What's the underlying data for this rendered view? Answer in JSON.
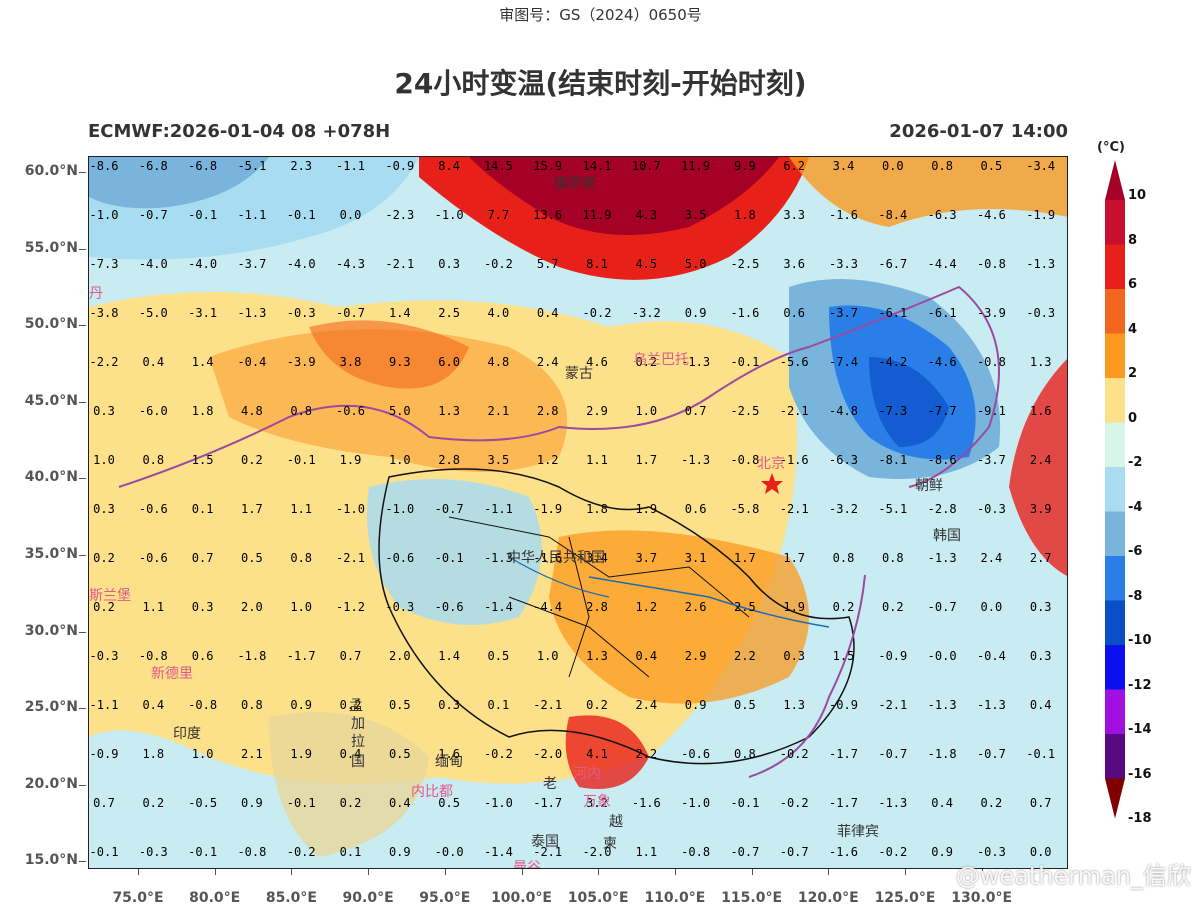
{
  "approval_number": "审图号：GS（2024）0650号",
  "title": "24小时变温(结束时刻-开始时刻)",
  "model_run": "ECMWF:2026-01-04 08 +078H",
  "valid_time": "2026-01-07 14:00",
  "unit": "(°C)",
  "watermark": "@weatherman_信欣",
  "lat_labels": [
    "60.0°N",
    "55.0°N",
    "50.0°N",
    "45.0°N",
    "40.0°N",
    "35.0°N",
    "30.0°N",
    "25.0°N",
    "20.0°N",
    "15.0°N"
  ],
  "lon_labels": [
    "75.0°E",
    "80.0°E",
    "85.0°E",
    "90.0°E",
    "95.0°E",
    "100.0°E",
    "105.0°E",
    "110.0°E",
    "115.0°E",
    "120.0°E",
    "125.0°E",
    "130.0°E"
  ],
  "colorbar": {
    "labels": [
      "10",
      "8",
      "6",
      "4",
      "2",
      "0",
      "-2",
      "-4",
      "-6",
      "-8",
      "-10",
      "-12",
      "-14",
      "-16",
      "-18"
    ],
    "colors": [
      "#a50026",
      "#c8102e",
      "#e8201a",
      "#f2651e",
      "#fb9a1e",
      "#fde08a",
      "#d8f5e8",
      "#a8dcf0",
      "#78b4dc",
      "#2a7ee8",
      "#0a4ec8",
      "#0a10f0",
      "#a010e0",
      "#5a0a80",
      "#800000"
    ]
  },
  "places": [
    {
      "name": "俄罗斯",
      "color": "#333"
    },
    {
      "name": "蒙古",
      "color": "#333"
    },
    {
      "name": "乌兰巴托",
      "color": "#e05a8a"
    },
    {
      "name": "北京",
      "color": "#e05a8a"
    },
    {
      "name": "朝鲜",
      "color": "#333"
    },
    {
      "name": "韩国",
      "color": "#333"
    },
    {
      "name": "中华人民共和国",
      "color": "#333"
    },
    {
      "name": "斯兰堡",
      "color": "#e05a8a"
    },
    {
      "name": "新德里",
      "color": "#e05a8a"
    },
    {
      "name": "印度",
      "color": "#333"
    },
    {
      "name": "孟",
      "color": "#333"
    },
    {
      "name": "加",
      "color": "#333"
    },
    {
      "name": "拉",
      "color": "#333"
    },
    {
      "name": "国",
      "color": "#333"
    },
    {
      "name": "缅甸",
      "color": "#333"
    },
    {
      "name": "内比都",
      "color": "#e05a8a"
    },
    {
      "name": "河内",
      "color": "#e05a8a"
    },
    {
      "name": "老",
      "color": "#333"
    },
    {
      "name": "万象",
      "color": "#e05a8a"
    },
    {
      "name": "越",
      "color": "#333"
    },
    {
      "name": "泰国",
      "color": "#333"
    },
    {
      "name": "曼谷",
      "color": "#e05a8a"
    },
    {
      "name": "柬",
      "color": "#333"
    },
    {
      "name": "菲律宾",
      "color": "#333"
    },
    {
      "name": "丹",
      "color": "#e05a8a"
    }
  ],
  "grid_values": [
    [
      "-8.6",
      "-6.8",
      "-6.8",
      "-5.1",
      "2.3",
      "-1.1",
      "-0.9",
      "8.4",
      "14.5",
      "15.9",
      "14.1",
      "10.7",
      "11.9",
      "9.9",
      "6.2",
      "3.4",
      "0.0",
      "0.8",
      "0.5",
      "-3.4"
    ],
    [
      "-1.0",
      "-0.7",
      "-0.1",
      "-1.1",
      "-0.1",
      "0.0",
      "-2.3",
      "-1.0",
      "7.7",
      "13.6",
      "11.9",
      "4.3",
      "3.5",
      "1.8",
      "3.3",
      "-1.6",
      "-8.4",
      "-6.3",
      "-4.6",
      "-1.9"
    ],
    [
      "-7.3",
      "-4.0",
      "-4.0",
      "-3.7",
      "-4.0",
      "-4.3",
      "-2.1",
      "0.3",
      "-0.2",
      "5.7",
      "8.1",
      "4.5",
      "5.0",
      "-2.5",
      "3.6",
      "-3.3",
      "-6.7",
      "-4.4",
      "-0.8",
      "-1.3"
    ],
    [
      "-3.8",
      "-5.0",
      "-3.1",
      "-1.3",
      "-0.3",
      "-0.7",
      "1.4",
      "2.5",
      "4.0",
      "0.4",
      "-0.2",
      "-3.2",
      "0.9",
      "-1.6",
      "0.6",
      "-3.7",
      "-6.1",
      "-6.1",
      "-3.9",
      "-0.3"
    ],
    [
      "-2.2",
      "0.4",
      "1.4",
      "-0.4",
      "-3.9",
      "3.8",
      "9.3",
      "6.0",
      "4.8",
      "2.4",
      "4.6",
      "0.2",
      "-1.3",
      "-0.1",
      "-5.6",
      "-7.4",
      "-4.2",
      "-4.6",
      "-0.8",
      "1.3"
    ],
    [
      "0.3",
      "-6.0",
      "1.8",
      "4.8",
      "0.8",
      "-0.6",
      "5.0",
      "1.3",
      "2.1",
      "2.8",
      "2.9",
      "1.0",
      "0.7",
      "-2.5",
      "-2.1",
      "-4.8",
      "-7.3",
      "-7.7",
      "-9.1",
      "1.6"
    ],
    [
      "1.0",
      "0.8",
      "1.5",
      "0.2",
      "-0.1",
      "1.9",
      "1.0",
      "2.8",
      "3.5",
      "1.2",
      "1.1",
      "1.7",
      "-1.3",
      "-0.8",
      "-1.6",
      "-6.3",
      "-8.1",
      "-8.6",
      "-3.7",
      "2.4"
    ],
    [
      "0.3",
      "-0.6",
      "0.1",
      "1.7",
      "1.1",
      "-1.0",
      "-1.0",
      "-0.7",
      "-1.1",
      "-1.9",
      "1.8",
      "1.9",
      "0.6",
      "-5.8",
      "-2.1",
      "-3.2",
      "-5.1",
      "-2.8",
      "-0.3",
      "3.9"
    ],
    [
      "0.2",
      "-0.6",
      "0.7",
      "0.5",
      "0.8",
      "-2.1",
      "-0.6",
      "-0.1",
      "-1.3",
      "-1.6",
      "3.4",
      "3.7",
      "3.1",
      "1.7",
      "1.7",
      "0.8",
      "0.8",
      "-1.3",
      "2.4",
      "2.7"
    ],
    [
      "0.2",
      "1.1",
      "0.3",
      "2.0",
      "1.0",
      "-1.2",
      "-0.3",
      "-0.6",
      "-1.4",
      "-4.4",
      "2.8",
      "1.2",
      "2.6",
      "2.5",
      "1.9",
      "0.2",
      "0.2",
      "-0.7",
      "0.0",
      "0.3"
    ],
    [
      "-0.3",
      "-0.8",
      "0.6",
      "-1.8",
      "-1.7",
      "0.7",
      "2.0",
      "1.4",
      "0.5",
      "1.0",
      "1.3",
      "0.4",
      "2.9",
      "2.2",
      "0.3",
      "1.5",
      "-0.9",
      "-0.0",
      "-0.4",
      "0.3"
    ],
    [
      "-1.1",
      "0.4",
      "-0.8",
      "0.8",
      "0.9",
      "0.2",
      "0.5",
      "0.3",
      "0.1",
      "-2.1",
      "0.2",
      "2.4",
      "0.9",
      "0.5",
      "1.3",
      "-0.9",
      "-2.1",
      "-1.3",
      "-1.3",
      "0.4"
    ],
    [
      "-0.9",
      "1.8",
      "1.0",
      "2.1",
      "1.9",
      "0.4",
      "0.5",
      "1.6",
      "-0.2",
      "-2.0",
      "4.1",
      "2.2",
      "-0.6",
      "0.8",
      "-0.2",
      "-1.7",
      "-0.7",
      "-1.8",
      "-0.7",
      "-0.1"
    ],
    [
      "0.7",
      "0.2",
      "-0.5",
      "0.9",
      "-0.1",
      "0.2",
      "0.4",
      "0.5",
      "-1.0",
      "-1.7",
      "3.2",
      "-1.6",
      "-1.0",
      "-0.1",
      "-0.2",
      "-1.7",
      "-1.3",
      "0.4",
      "0.2",
      "0.7"
    ],
    [
      "-0.1",
      "-0.3",
      "-0.1",
      "-0.8",
      "-0.2",
      "0.1",
      "0.9",
      "-0.0",
      "-1.4",
      "-2.1",
      "-2.0",
      "1.1",
      "-0.8",
      "-0.7",
      "-0.7",
      "-1.6",
      "-0.2",
      "0.9",
      "-0.3",
      "0.0"
    ]
  ]
}
